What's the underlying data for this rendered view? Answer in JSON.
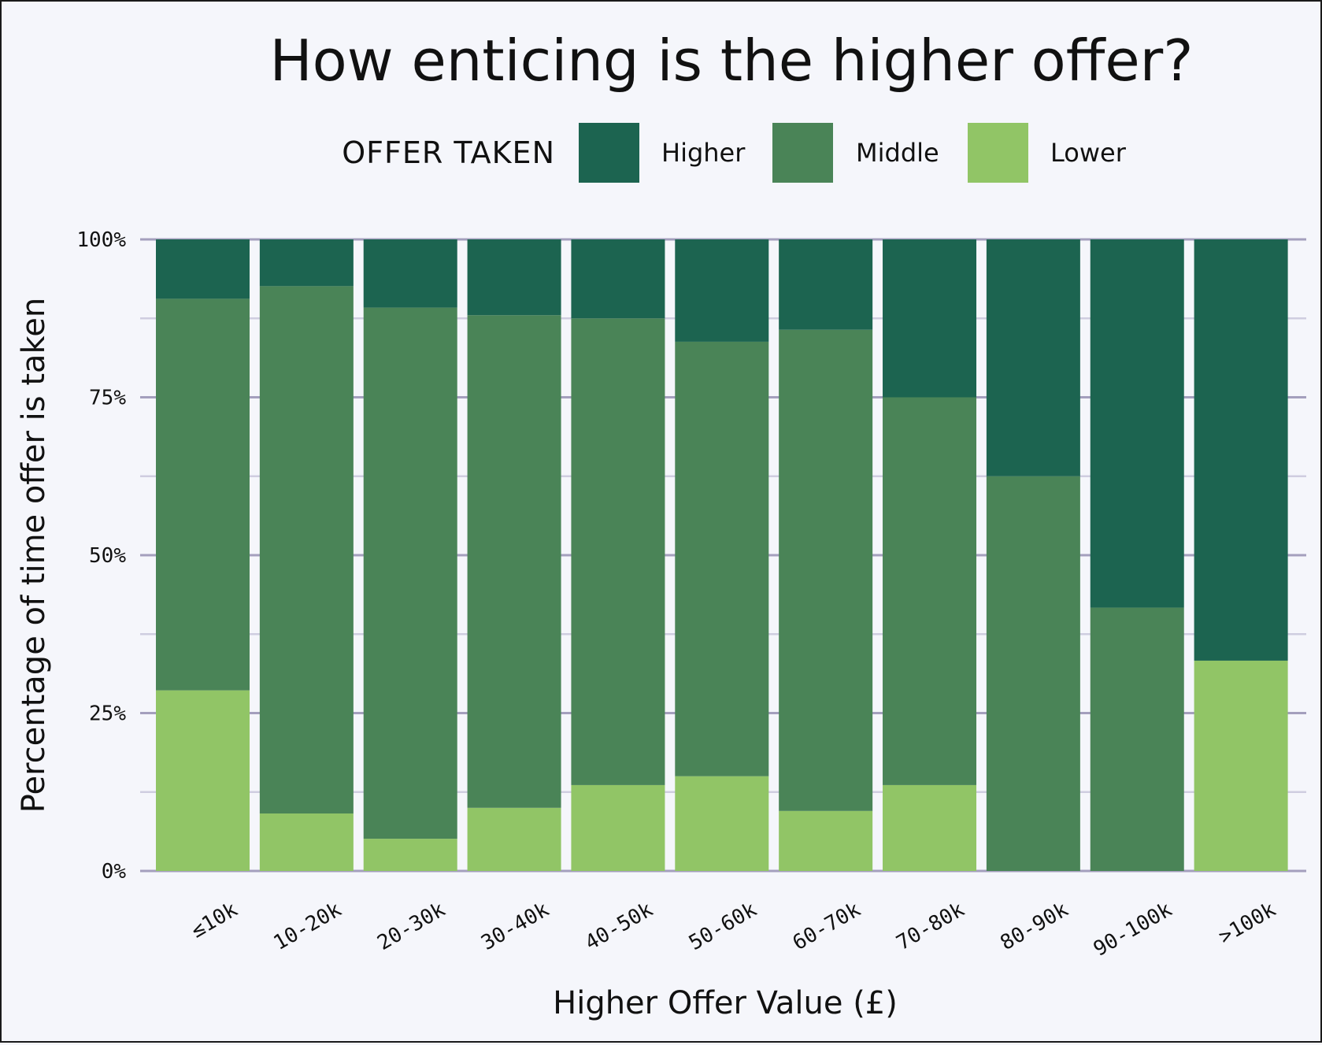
{
  "chart_data": {
    "type": "bar",
    "stacked": true,
    "normalized": true,
    "title": "How enticing is the higher offer?",
    "xlabel": "Higher Offer Value (£)",
    "ylabel": "Percentage of time offer is taken",
    "ylim": [
      0,
      100
    ],
    "yticks": [
      "0%",
      "25%",
      "50%",
      "75%",
      "100%"
    ],
    "grid": true,
    "legend": {
      "title": "OFFER TAKEN",
      "placement": "top"
    },
    "categories": [
      "≤10k",
      "10-20k",
      "20-30k",
      "30-40k",
      "40-50k",
      "50-60k",
      "60-70k",
      "70-80k",
      "80-90k",
      "90-100k",
      ">100k"
    ],
    "series": [
      {
        "name": "Lower",
        "color": "#91c566",
        "values": [
          28.6,
          9.1,
          5.1,
          10.0,
          13.6,
          15.0,
          9.5,
          13.6,
          0.0,
          0.0,
          33.3
        ]
      },
      {
        "name": "Middle",
        "color": "#4a8457",
        "values": [
          62.0,
          83.5,
          84.1,
          78.0,
          73.9,
          68.8,
          76.2,
          61.4,
          62.5,
          41.7,
          0.0
        ]
      },
      {
        "name": "Higher",
        "color": "#1c6450",
        "values": [
          9.4,
          7.4,
          10.8,
          12.0,
          12.5,
          16.2,
          14.3,
          25.0,
          37.5,
          58.3,
          66.7
        ]
      }
    ],
    "legend_order": [
      "Higher",
      "Middle",
      "Lower"
    ],
    "colors": {
      "background": "#f5f6fb",
      "major_grid": "#a49fbd",
      "minor_grid": "#cfcde0"
    }
  }
}
